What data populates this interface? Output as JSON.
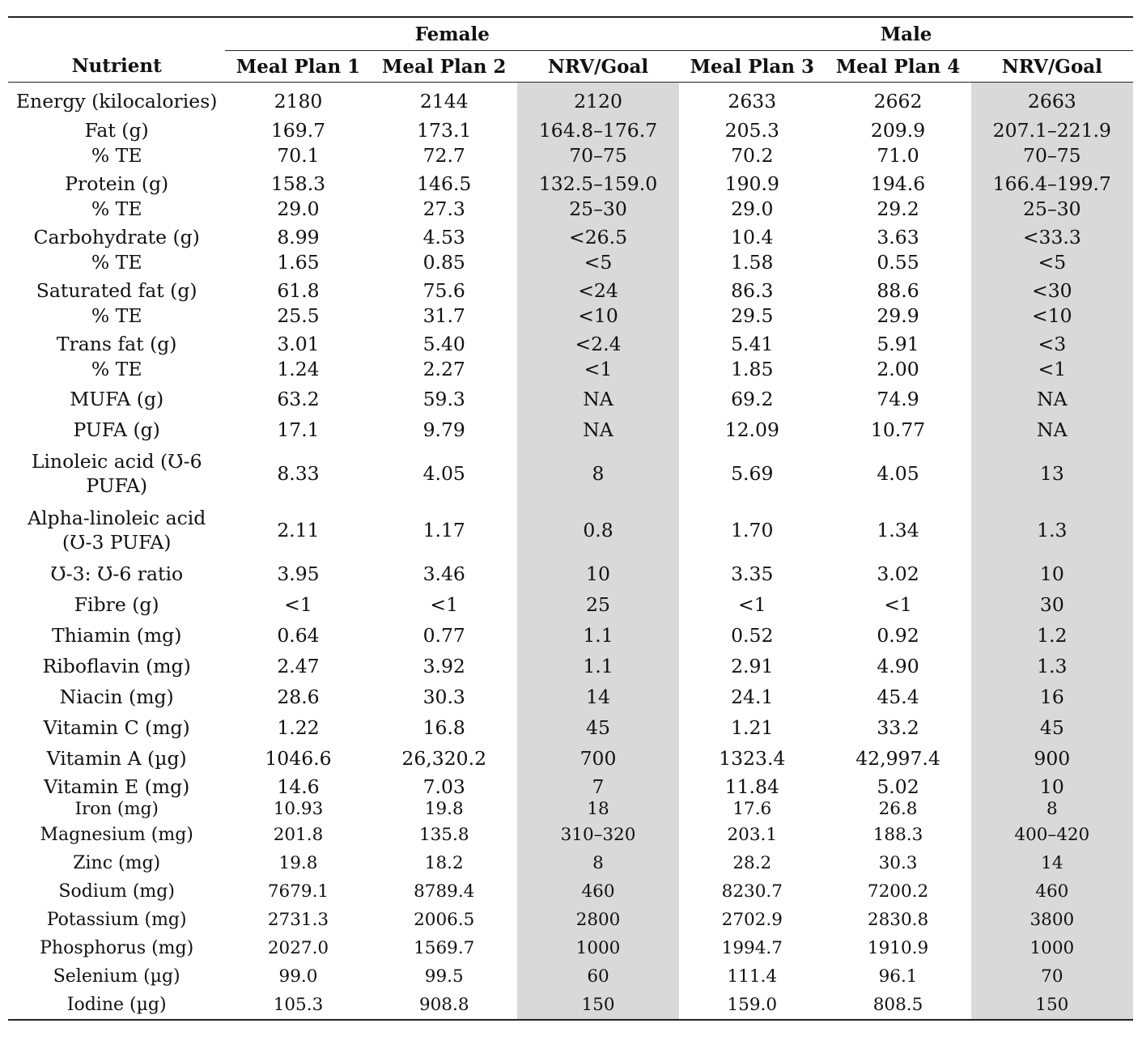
{
  "table": {
    "group_headers": {
      "female": "Female",
      "male": "Male"
    },
    "columns": [
      "Nutrient",
      "Meal Plan 1",
      "Meal Plan 2",
      "NRV/Goal",
      "Meal Plan 3",
      "Meal Plan 4",
      "NRV/Goal"
    ],
    "rows": [
      {
        "nutrient": "Energy (kilocalories)",
        "values": [
          "2180",
          "2144",
          "2120",
          "2633",
          "2662",
          "2663"
        ]
      },
      {
        "nutrient": "Fat (g)",
        "values": [
          "169.7",
          "173.1",
          "164.8–176.7",
          "205.3",
          "209.9",
          "207.1–221.9"
        ]
      },
      {
        "nutrient": "% TE",
        "values": [
          "70.1",
          "72.7",
          "70–75",
          "70.2",
          "71.0",
          "70–75"
        ]
      },
      {
        "nutrient": "Protein (g)",
        "values": [
          "158.3",
          "146.5",
          "132.5–159.0",
          "190.9",
          "194.6",
          "166.4–199.7"
        ]
      },
      {
        "nutrient": "% TE",
        "values": [
          "29.0",
          "27.3",
          "25–30",
          "29.0",
          "29.2",
          "25–30"
        ]
      },
      {
        "nutrient": "Carbohydrate (g)",
        "values": [
          "8.99",
          "4.53",
          "<26.5",
          "10.4",
          "3.63",
          "<33.3"
        ]
      },
      {
        "nutrient": "% TE",
        "values": [
          "1.65",
          "0.85",
          "<5",
          "1.58",
          "0.55",
          "<5"
        ]
      },
      {
        "nutrient": "Saturated fat (g)",
        "values": [
          "61.8",
          "75.6",
          "<24",
          "86.3",
          "88.6",
          "<30"
        ]
      },
      {
        "nutrient": "% TE",
        "values": [
          "25.5",
          "31.7",
          "<10",
          "29.5",
          "29.9",
          "<10"
        ]
      },
      {
        "nutrient": "Trans fat (g)",
        "values": [
          "3.01",
          "5.40",
          "<2.4",
          "5.41",
          "5.91",
          "<3"
        ]
      },
      {
        "nutrient": "% TE",
        "values": [
          "1.24",
          "2.27",
          "<1",
          "1.85",
          "2.00",
          "<1"
        ]
      },
      {
        "nutrient": "MUFA (g)",
        "values": [
          "63.2",
          "59.3",
          "NA",
          "69.2",
          "74.9",
          "NA"
        ]
      },
      {
        "nutrient": "PUFA (g)",
        "values": [
          "17.1",
          "9.79",
          "NA",
          "12.09",
          "10.77",
          "NA"
        ]
      },
      {
        "nutrient": "Linoleic acid (Ʊ-6 PUFA)",
        "values": [
          "8.33",
          "4.05",
          "8",
          "5.69",
          "4.05",
          "13"
        ]
      },
      {
        "nutrient": "Alpha-linoleic acid (Ʊ-3 PUFA)",
        "values": [
          "2.11",
          "1.17",
          "0.8",
          "1.70",
          "1.34",
          "1.3"
        ]
      },
      {
        "nutrient": "Ʊ-3: Ʊ-6 ratio",
        "values": [
          "3.95",
          "3.46",
          "10",
          "3.35",
          "3.02",
          "10"
        ]
      },
      {
        "nutrient": "Fibre (g)",
        "values": [
          "<1",
          "<1",
          "25",
          "<1",
          "<1",
          "30"
        ]
      },
      {
        "nutrient": "Thiamin (mg)",
        "values": [
          "0.64",
          "0.77",
          "1.1",
          "0.52",
          "0.92",
          "1.2"
        ]
      },
      {
        "nutrient": "Riboflavin (mg)",
        "values": [
          "2.47",
          "3.92",
          "1.1",
          "2.91",
          "4.90",
          "1.3"
        ]
      },
      {
        "nutrient": "Niacin (mg)",
        "values": [
          "28.6",
          "30.3",
          "14",
          "24.1",
          "45.4",
          "16"
        ]
      },
      {
        "nutrient": "Vitamin C (mg)",
        "values": [
          "1.22",
          "16.8",
          "45",
          "1.21",
          "33.2",
          "45"
        ]
      },
      {
        "nutrient": "Vitamin A (µg)",
        "values": [
          "1046.6",
          "26,320.2",
          "700",
          "1323.4",
          "42,997.4",
          "900"
        ]
      },
      {
        "nutrient": "Vitamin E (mg)",
        "values": [
          "14.6",
          "7.03",
          "7",
          "11.84",
          "5.02",
          "10"
        ]
      },
      {
        "nutrient": "Iron (mg)",
        "values": [
          "10.93",
          "19.8",
          "18",
          "17.6",
          "26.8",
          "8"
        ]
      },
      {
        "nutrient": "Magnesium (mg)",
        "values": [
          "201.8",
          "135.8",
          "310–320",
          "203.1",
          "188.3",
          "400–420"
        ]
      },
      {
        "nutrient": "Zinc (mg)",
        "values": [
          "19.8",
          "18.2",
          "8",
          "28.2",
          "30.3",
          "14"
        ]
      },
      {
        "nutrient": "Sodium (mg)",
        "values": [
          "7679.1",
          "8789.4",
          "460",
          "8230.7",
          "7200.2",
          "460"
        ]
      },
      {
        "nutrient": "Potassium (mg)",
        "values": [
          "2731.3",
          "2006.5",
          "2800",
          "2702.9",
          "2830.8",
          "3800"
        ]
      },
      {
        "nutrient": "Phosphorus (mg)",
        "values": [
          "2027.0",
          "1569.7",
          "1000",
          "1994.7",
          "1910.9",
          "1000"
        ]
      },
      {
        "nutrient": "Selenium (µg)",
        "values": [
          "99.0",
          "99.5",
          "60",
          "111.4",
          "96.1",
          "70"
        ]
      },
      {
        "nutrient": "Iodine (µg)",
        "values": [
          "105.3",
          "908.8",
          "150",
          "159.0",
          "808.5",
          "150"
        ]
      }
    ]
  }
}
